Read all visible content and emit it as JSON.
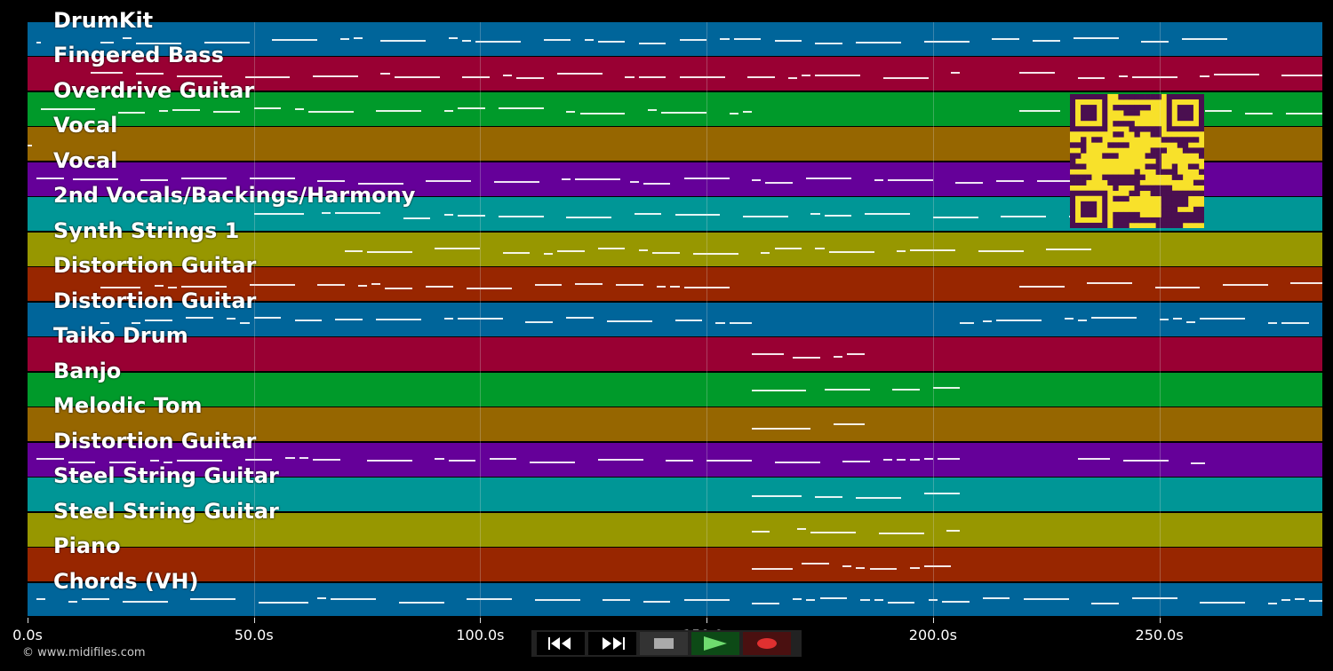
{
  "tracks": [
    {
      "name": "DrumKit",
      "color": "#00659a"
    },
    {
      "name": "Fingered Bass",
      "color": "#990033"
    },
    {
      "name": "Overdrive Guitar",
      "color": "#009a2a"
    },
    {
      "name": "Vocal",
      "color": "#966600"
    },
    {
      "name": "Vocal",
      "color": "#650099"
    },
    {
      "name": "2nd Vocals/Backings/Harmony",
      "color": "#009696"
    },
    {
      "name": "Synth Strings 1",
      "color": "#979700"
    },
    {
      "name": "Distortion Guitar",
      "color": "#982600"
    },
    {
      "name": "Distortion Guitar",
      "color": "#00659a"
    },
    {
      "name": "Taiko Drum",
      "color": "#990033"
    },
    {
      "name": "Banjo",
      "color": "#009a2a"
    },
    {
      "name": "Melodic Tom",
      "color": "#966600"
    },
    {
      "name": "Distortion Guitar",
      "color": "#650099"
    },
    {
      "name": "Steel String Guitar",
      "color": "#009696"
    },
    {
      "name": "Steel String Guitar",
      "color": "#979700"
    },
    {
      "name": "Piano",
      "color": "#982600"
    },
    {
      "name": "Chords (VH)",
      "color": "#00659a"
    }
  ],
  "time_axis": {
    "ticks": [
      "0.0s",
      "50.0s",
      "100.0s",
      "150.0s",
      "200.0s",
      "250.0s"
    ],
    "max_seconds": 286
  },
  "credit": "© www.midifiles.com",
  "transport": {
    "rewind": "rewind-icon",
    "fast_forward": "fast-forward-icon",
    "stop": "stop-icon",
    "play": "play-icon",
    "record": "record-icon"
  },
  "qr_color": "#f8e12a",
  "qr_dark": "#4a0f50"
}
